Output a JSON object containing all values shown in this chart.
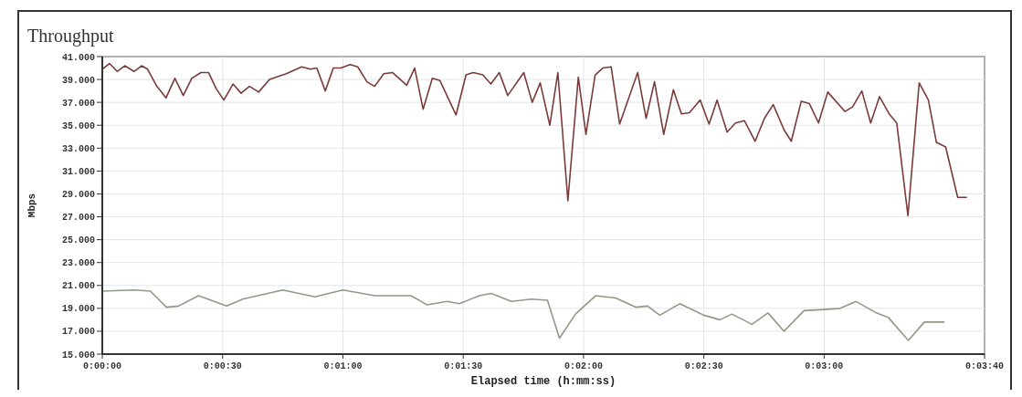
{
  "chart_data": {
    "type": "line",
    "title": "Throughput",
    "xlabel": "Elapsed time (h:mm:ss)",
    "ylabel": "Mbps",
    "xlim": [
      0,
      220
    ],
    "ylim": [
      15,
      41
    ],
    "xticks": [
      {
        "value": 0,
        "label": "0:00:00"
      },
      {
        "value": 30,
        "label": "0:00:30"
      },
      {
        "value": 60,
        "label": "0:01:00"
      },
      {
        "value": 90,
        "label": "0:01:30"
      },
      {
        "value": 120,
        "label": "0:02:00"
      },
      {
        "value": 150,
        "label": "0:02:30"
      },
      {
        "value": 180,
        "label": "0:03:00"
      },
      {
        "value": 220,
        "label": "0:03:40"
      }
    ],
    "yticks": [
      {
        "value": 15,
        "label": "15.000"
      },
      {
        "value": 17,
        "label": "17.000"
      },
      {
        "value": 19,
        "label": "19.000"
      },
      {
        "value": 21,
        "label": "21.000"
      },
      {
        "value": 23,
        "label": "23.000"
      },
      {
        "value": 25,
        "label": "25.000"
      },
      {
        "value": 27,
        "label": "27.000"
      },
      {
        "value": 29,
        "label": "29.000"
      },
      {
        "value": 31,
        "label": "31.000"
      },
      {
        "value": 33,
        "label": "33.000"
      },
      {
        "value": 35,
        "label": "35.000"
      },
      {
        "value": 37,
        "label": "37.000"
      },
      {
        "value": 39,
        "label": "39.000"
      },
      {
        "value": 41,
        "label": "41.000"
      }
    ],
    "grid": true,
    "marker": "none",
    "line_style": "solid",
    "series": [
      {
        "color": "#7a3a3a",
        "x": [
          0,
          1.8,
          3.7,
          5.6,
          7.9,
          9.8,
          11.3,
          13.6,
          15.9,
          18.1,
          20.2,
          22.3,
          24.6,
          26.5,
          28.4,
          30.3,
          32.6,
          34.6,
          36.7,
          39,
          41.7,
          45.9,
          49.7,
          51.9,
          53.5,
          55.6,
          57.6,
          59.5,
          61.8,
          63.7,
          66,
          67.9,
          70.2,
          72.4,
          75.9,
          77.9,
          80,
          82.3,
          84.2,
          88.2,
          90.7,
          92.5,
          94.9,
          96.9,
          99,
          101.1,
          105.1,
          107.2,
          109.2,
          111.6,
          113.6,
          116.1,
          118.7,
          120.6,
          122.9,
          124.8,
          126.9,
          129,
          133.5,
          135.6,
          137.7,
          140,
          142.4,
          144.4,
          146.4,
          149.1,
          151.3,
          153.3,
          155.8,
          157.9,
          160.1,
          162.8,
          165.1,
          167.3,
          170,
          171.8,
          174.3,
          176.3,
          178.6,
          180.9,
          185.2,
          187.1,
          189.4,
          191.6,
          193.8,
          196.2,
          198.1,
          200.9,
          203.7,
          206,
          208,
          210.3,
          213.3,
          215.6
        ],
        "values": [
          39.9,
          40.4,
          39.7,
          40.2,
          39.7,
          40.2,
          39.9,
          38.4,
          37.4,
          39.1,
          37.6,
          39.1,
          39.6,
          39.6,
          38.2,
          37.2,
          38.6,
          37.8,
          38.4,
          37.9,
          39,
          39.5,
          40.1,
          39.9,
          40,
          38,
          40,
          40,
          40.3,
          40.1,
          38.8,
          38.4,
          39.5,
          39.6,
          38.5,
          40,
          36.4,
          39.1,
          38.9,
          35.9,
          39.4,
          39.6,
          39.4,
          38.6,
          39.6,
          37.6,
          39.6,
          37,
          38.7,
          35,
          39.6,
          28.4,
          39.2,
          34.2,
          39.4,
          40,
          40.1,
          35.1,
          39.6,
          35.6,
          38.8,
          34.2,
          38.1,
          36,
          36.1,
          37.2,
          35.1,
          37.2,
          34.4,
          35.2,
          35.4,
          33.6,
          35.6,
          36.8,
          34.6,
          33.6,
          37.1,
          36.9,
          35.2,
          37.9,
          36.2,
          36.6,
          38,
          35.2,
          37.5,
          36,
          35.2,
          27.1,
          38.7,
          37.2,
          33.5,
          33.1,
          28.7,
          28.7
        ]
      },
      {
        "color": "#8f9a86",
        "x": [
          0,
          8,
          12,
          16,
          19,
          24,
          31,
          35,
          45,
          53,
          60,
          68,
          77,
          81,
          86,
          89,
          94,
          97,
          102,
          107,
          111,
          114,
          118,
          123,
          128,
          133,
          136,
          139,
          144,
          150,
          154,
          157,
          162,
          166,
          170,
          175,
          180,
          184,
          188,
          193,
          196,
          201,
          205,
          210
        ],
        "values": [
          20.5,
          20.6,
          20.5,
          19.1,
          19.2,
          20.1,
          19.2,
          19.8,
          20.6,
          20,
          20.6,
          20.1,
          20.1,
          19.3,
          19.6,
          19.4,
          20.1,
          20.3,
          19.6,
          19.8,
          19.7,
          16.4,
          18.5,
          20.1,
          19.9,
          19.1,
          19.2,
          18.4,
          19.4,
          18.4,
          18,
          18.5,
          17.6,
          18.6,
          17,
          18.8,
          18.9,
          19,
          19.6,
          18.6,
          18.2,
          16.2,
          17.8,
          17.8
        ]
      }
    ]
  }
}
